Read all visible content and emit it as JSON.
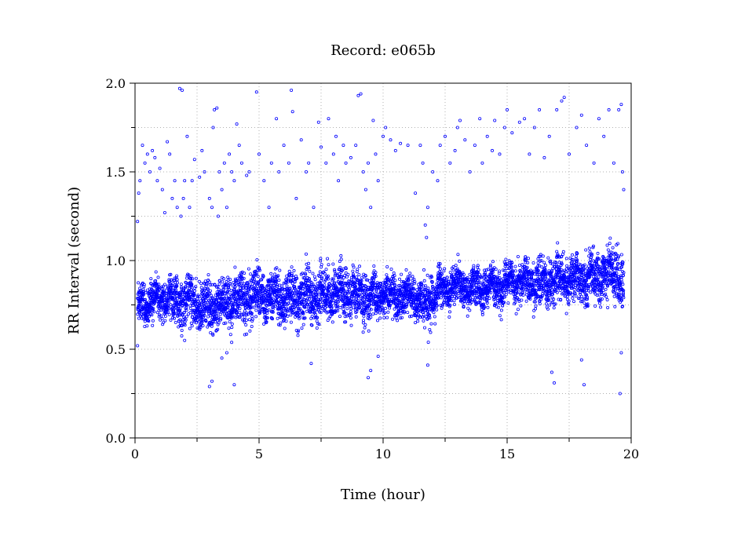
{
  "chart_data": {
    "type": "scatter",
    "title": "Record:  e065b",
    "xlabel": "Time (hour)",
    "ylabel": "RR Interval (second)",
    "xlim": [
      0,
      20
    ],
    "ylim": [
      0.0,
      2.0
    ],
    "xticks": [
      0,
      5,
      10,
      15,
      20
    ],
    "xtick_labels": [
      "0",
      "5",
      "10",
      "15",
      "20"
    ],
    "yticks": [
      0.0,
      0.5,
      1.0,
      1.5,
      2.0
    ],
    "ytick_labels": [
      "0.0",
      "0.5",
      "1.0",
      "1.5",
      "2.0"
    ],
    "grid": true,
    "marker_color": "#0000ff",
    "trend_hours": [
      0.1,
      0.5,
      1.0,
      1.5,
      2.0,
      2.5,
      3.0,
      3.5,
      4.0,
      4.5,
      5.0,
      5.5,
      6.0,
      6.5,
      7.0,
      7.5,
      8.0,
      8.5,
      9.0,
      9.5,
      10.0,
      10.5,
      11.0,
      11.5,
      11.8,
      12.0,
      12.5,
      13.0,
      13.5,
      14.0,
      14.5,
      15.0,
      15.5,
      16.0,
      16.5,
      17.0,
      17.5,
      18.0,
      18.5,
      19.0,
      19.5,
      19.7
    ],
    "trend_rr": [
      0.74,
      0.78,
      0.79,
      0.78,
      0.76,
      0.75,
      0.74,
      0.76,
      0.78,
      0.8,
      0.82,
      0.79,
      0.78,
      0.8,
      0.79,
      0.8,
      0.82,
      0.81,
      0.79,
      0.8,
      0.81,
      0.8,
      0.8,
      0.78,
      0.74,
      0.8,
      0.84,
      0.85,
      0.84,
      0.84,
      0.85,
      0.87,
      0.88,
      0.88,
      0.87,
      0.89,
      0.9,
      0.9,
      0.91,
      0.92,
      0.92,
      0.85
    ],
    "trend_spread": [
      0.08,
      0.08,
      0.08,
      0.09,
      0.1,
      0.1,
      0.1,
      0.1,
      0.1,
      0.11,
      0.11,
      0.1,
      0.1,
      0.11,
      0.1,
      0.1,
      0.11,
      0.11,
      0.1,
      0.1,
      0.09,
      0.09,
      0.08,
      0.08,
      0.12,
      0.09,
      0.08,
      0.08,
      0.08,
      0.08,
      0.09,
      0.09,
      0.09,
      0.09,
      0.1,
      0.1,
      0.1,
      0.1,
      0.11,
      0.11,
      0.12,
      0.14
    ],
    "outliers": [
      [
        0.1,
        0.52
      ],
      [
        0.1,
        1.22
      ],
      [
        0.15,
        1.38
      ],
      [
        0.2,
        1.45
      ],
      [
        0.3,
        1.65
      ],
      [
        0.4,
        1.55
      ],
      [
        0.5,
        1.6
      ],
      [
        0.6,
        1.5
      ],
      [
        0.7,
        1.62
      ],
      [
        0.8,
        1.58
      ],
      [
        0.9,
        1.45
      ],
      [
        1.0,
        1.52
      ],
      [
        1.1,
        1.4
      ],
      [
        1.2,
        1.27
      ],
      [
        1.3,
        1.67
      ],
      [
        1.4,
        1.6
      ],
      [
        1.5,
        1.35
      ],
      [
        1.6,
        1.45
      ],
      [
        1.7,
        1.3
      ],
      [
        1.8,
        1.97
      ],
      [
        1.85,
        1.25
      ],
      [
        1.9,
        1.96
      ],
      [
        1.95,
        1.35
      ],
      [
        2.0,
        1.45
      ],
      [
        2.1,
        1.7
      ],
      [
        2.2,
        1.3
      ],
      [
        2.3,
        1.45
      ],
      [
        2.4,
        1.57
      ],
      [
        2.6,
        1.47
      ],
      [
        2.7,
        1.62
      ],
      [
        2.8,
        1.5
      ],
      [
        3.0,
        1.35
      ],
      [
        3.1,
        1.3
      ],
      [
        3.15,
        1.75
      ],
      [
        3.2,
        1.85
      ],
      [
        3.3,
        1.86
      ],
      [
        3.35,
        1.25
      ],
      [
        3.4,
        1.5
      ],
      [
        3.5,
        1.4
      ],
      [
        3.6,
        1.55
      ],
      [
        3.7,
        1.3
      ],
      [
        3.8,
        1.6
      ],
      [
        3.9,
        1.5
      ],
      [
        4.0,
        1.45
      ],
      [
        4.1,
        1.77
      ],
      [
        4.2,
        1.65
      ],
      [
        4.3,
        1.55
      ],
      [
        4.5,
        1.48
      ],
      [
        4.6,
        1.5
      ],
      [
        4.9,
        1.95
      ],
      [
        5.0,
        1.6
      ],
      [
        5.2,
        1.45
      ],
      [
        5.4,
        1.3
      ],
      [
        5.5,
        1.55
      ],
      [
        5.7,
        1.8
      ],
      [
        5.8,
        1.5
      ],
      [
        6.0,
        1.65
      ],
      [
        6.2,
        1.55
      ],
      [
        6.3,
        1.96
      ],
      [
        6.35,
        1.84
      ],
      [
        6.5,
        1.35
      ],
      [
        6.7,
        1.68
      ],
      [
        6.9,
        1.5
      ],
      [
        7.0,
        1.55
      ],
      [
        7.2,
        1.3
      ],
      [
        7.4,
        1.78
      ],
      [
        7.5,
        1.64
      ],
      [
        7.7,
        1.55
      ],
      [
        7.8,
        1.8
      ],
      [
        8.0,
        1.6
      ],
      [
        8.1,
        1.7
      ],
      [
        8.2,
        1.45
      ],
      [
        8.4,
        1.65
      ],
      [
        8.5,
        1.55
      ],
      [
        8.7,
        1.58
      ],
      [
        8.9,
        1.65
      ],
      [
        9.0,
        1.93
      ],
      [
        9.1,
        1.94
      ],
      [
        9.2,
        1.5
      ],
      [
        9.3,
        1.4
      ],
      [
        9.4,
        1.55
      ],
      [
        9.5,
        1.3
      ],
      [
        9.6,
        1.79
      ],
      [
        9.7,
        1.6
      ],
      [
        9.8,
        1.45
      ],
      [
        10.0,
        1.7
      ],
      [
        10.1,
        1.75
      ],
      [
        10.3,
        1.68
      ],
      [
        10.5,
        1.62
      ],
      [
        10.7,
        1.66
      ],
      [
        11.0,
        1.65
      ],
      [
        11.3,
        1.38
      ],
      [
        11.5,
        1.65
      ],
      [
        11.6,
        1.55
      ],
      [
        11.7,
        1.2
      ],
      [
        11.75,
        1.13
      ],
      [
        11.8,
        1.3
      ],
      [
        12.0,
        1.5
      ],
      [
        12.2,
        1.45
      ],
      [
        12.3,
        1.65
      ],
      [
        12.5,
        1.7
      ],
      [
        12.7,
        1.55
      ],
      [
        12.9,
        1.62
      ],
      [
        13.0,
        1.75
      ],
      [
        13.1,
        1.79
      ],
      [
        13.3,
        1.68
      ],
      [
        13.5,
        1.5
      ],
      [
        13.7,
        1.65
      ],
      [
        13.9,
        1.8
      ],
      [
        14.0,
        1.55
      ],
      [
        14.2,
        1.7
      ],
      [
        14.4,
        1.62
      ],
      [
        14.5,
        1.79
      ],
      [
        14.7,
        1.6
      ],
      [
        14.9,
        1.75
      ],
      [
        15.0,
        1.85
      ],
      [
        15.2,
        1.72
      ],
      [
        15.5,
        1.78
      ],
      [
        15.7,
        1.8
      ],
      [
        15.9,
        1.6
      ],
      [
        16.1,
        1.75
      ],
      [
        16.3,
        1.85
      ],
      [
        16.5,
        1.58
      ],
      [
        16.7,
        1.7
      ],
      [
        17.0,
        1.85
      ],
      [
        17.2,
        1.9
      ],
      [
        17.3,
        1.92
      ],
      [
        17.5,
        1.6
      ],
      [
        17.8,
        1.75
      ],
      [
        18.0,
        1.82
      ],
      [
        18.2,
        1.65
      ],
      [
        18.5,
        1.55
      ],
      [
        18.7,
        1.8
      ],
      [
        18.9,
        1.7
      ],
      [
        19.1,
        1.85
      ],
      [
        19.3,
        1.55
      ],
      [
        19.5,
        1.85
      ],
      [
        19.6,
        1.88
      ],
      [
        19.7,
        1.4
      ],
      [
        19.65,
        1.5
      ],
      [
        2.0,
        0.55
      ],
      [
        3.0,
        0.29
      ],
      [
        3.1,
        0.32
      ],
      [
        3.5,
        0.45
      ],
      [
        3.7,
        0.48
      ],
      [
        4.0,
        0.3
      ],
      [
        7.1,
        0.42
      ],
      [
        9.4,
        0.34
      ],
      [
        9.5,
        0.38
      ],
      [
        9.8,
        0.46
      ],
      [
        11.8,
        0.41
      ],
      [
        16.8,
        0.37
      ],
      [
        16.9,
        0.31
      ],
      [
        18.0,
        0.44
      ],
      [
        18.1,
        0.3
      ],
      [
        19.55,
        0.25
      ],
      [
        19.6,
        0.48
      ]
    ]
  }
}
